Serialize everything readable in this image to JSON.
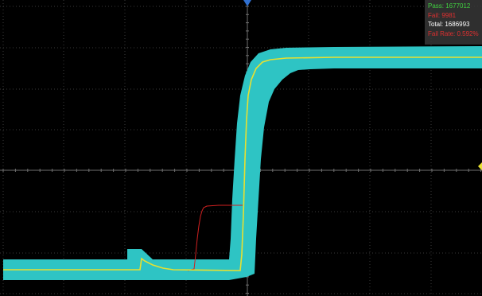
{
  "stats": {
    "pass": "Pass: 1677012",
    "fail": "Fail: 9981",
    "total": "Total: 1686993",
    "fail_rate": "Fail Rate: 0.592%"
  },
  "colors": {
    "background": "#000000",
    "grid": "#3a3a3a",
    "mask": "#2ec4c4",
    "trace": "#e8e030",
    "fail_trace": "#d02020",
    "pass_text": "#40d040",
    "fail_text": "#e03030",
    "total_text": "#ffffff",
    "trigger_marker": "#3070d0",
    "level_marker": "#e8e030"
  },
  "icons": {
    "trigger_position": "trigger-position-marker-icon",
    "trigger_level": "trigger-level-marker-icon"
  }
}
